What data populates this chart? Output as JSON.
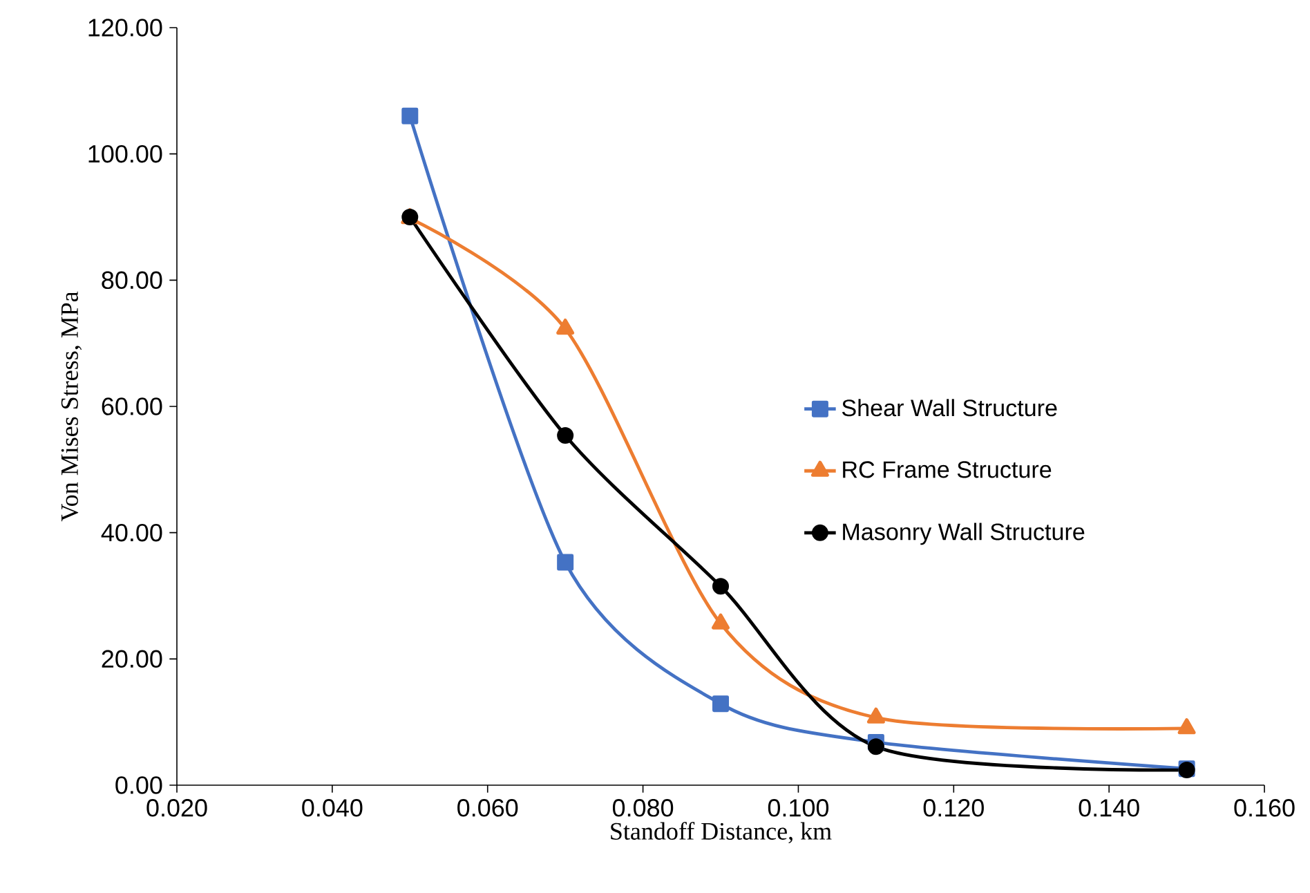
{
  "chart_data": {
    "type": "line",
    "xlabel": "Standoff Distance, km",
    "ylabel": "Von Mises Stress, MPa",
    "x": [
      0.05,
      0.07,
      0.09,
      0.11,
      0.15
    ],
    "series": [
      {
        "name": "Shear Wall Structure",
        "color": "#4472c4",
        "marker": "square",
        "values": [
          106.0,
          35.3,
          12.9,
          6.8,
          2.6
        ]
      },
      {
        "name": "RC Frame Structure",
        "color": "#ed7d31",
        "marker": "triangle",
        "values": [
          89.8,
          72.3,
          25.6,
          10.7,
          9.0
        ]
      },
      {
        "name": "Masonry Wall Structure",
        "color": "#000000",
        "marker": "circle",
        "values": [
          90.0,
          55.4,
          31.5,
          6.1,
          2.4
        ]
      }
    ],
    "xlim": [
      0.02,
      0.16
    ],
    "xticks": [
      {
        "value": 0.02,
        "label": "0.020"
      },
      {
        "value": 0.04,
        "label": "0.040"
      },
      {
        "value": 0.06,
        "label": "0.060"
      },
      {
        "value": 0.08,
        "label": "0.080"
      },
      {
        "value": 0.1,
        "label": "0.100"
      },
      {
        "value": 0.12,
        "label": "0.120"
      },
      {
        "value": 0.14,
        "label": "0.140"
      },
      {
        "value": 0.16,
        "label": "0.160"
      }
    ],
    "ylim": [
      0,
      120
    ],
    "yticks": [
      {
        "value": 0,
        "label": "0.00"
      },
      {
        "value": 20,
        "label": "20.00"
      },
      {
        "value": 40,
        "label": "40.00"
      },
      {
        "value": 60,
        "label": "60.00"
      },
      {
        "value": 80,
        "label": "80.00"
      },
      {
        "value": 100,
        "label": "100.00"
      },
      {
        "value": 120,
        "label": "120.00"
      }
    ],
    "grid": false,
    "legend": "right",
    "line_style": "solid"
  }
}
